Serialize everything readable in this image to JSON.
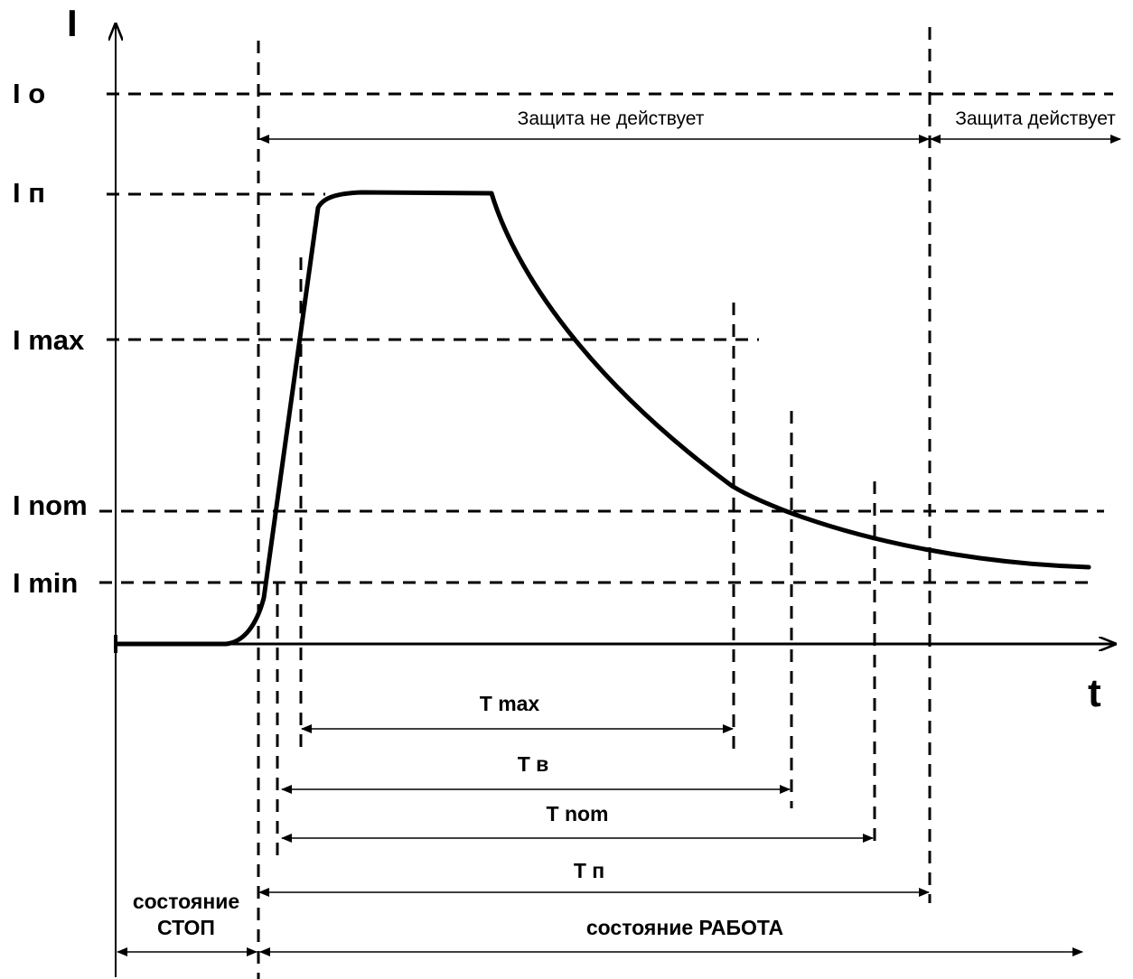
{
  "axes": {
    "y_label": "I",
    "x_label": "t"
  },
  "levels": {
    "io": "I o",
    "ip": "I п",
    "imax": "I max",
    "inom": "I nom",
    "imin": "I min"
  },
  "protection": {
    "inactive": "Защита  не действует",
    "active": "Защита действует"
  },
  "intervals": {
    "tmax": "T max",
    "tv": "T в",
    "tnom": "T nom",
    "tp": "T п"
  },
  "states": {
    "stop_line1": "состояние",
    "stop_line2": "СТОП",
    "run": "состояние РАБОТА"
  }
}
